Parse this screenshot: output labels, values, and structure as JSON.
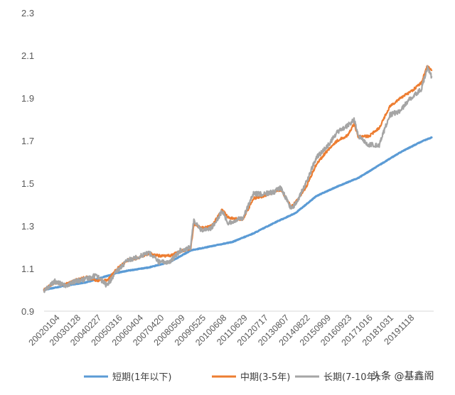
{
  "watermark": "头条 @基鑫阁",
  "chart_data": {
    "type": "line",
    "y_ticks": [
      "0.9",
      "1.1",
      "1.3",
      "1.5",
      "1.7",
      "1.9",
      "2.1",
      "2.3"
    ],
    "ylim": [
      0.9,
      2.3
    ],
    "x_tick_labels": [
      "20020104",
      "20030128",
      "20040227",
      "20050316",
      "20060404",
      "20070420",
      "20080509",
      "20090525",
      "20100608",
      "20110629",
      "20120717",
      "20130807",
      "20140822",
      "20150909",
      "20160923",
      "20171016",
      "20181031",
      "20191118"
    ],
    "x_start_year": 2002,
    "x_end_year": 2020.6,
    "grid": false,
    "legend_position": "bottom",
    "series": [
      {
        "name": "短期(1年以下)",
        "color": "#5B9BD5",
        "points": [
          [
            2002.0,
            1.0
          ],
          [
            2003.0,
            1.02
          ],
          [
            2004.0,
            1.035
          ],
          [
            2005.0,
            1.065
          ],
          [
            2005.5,
            1.08
          ],
          [
            2006.0,
            1.09
          ],
          [
            2007.0,
            1.105
          ],
          [
            2008.0,
            1.13
          ],
          [
            2009.0,
            1.185
          ],
          [
            2010.0,
            1.205
          ],
          [
            2011.0,
            1.225
          ],
          [
            2012.0,
            1.265
          ],
          [
            2013.0,
            1.315
          ],
          [
            2014.0,
            1.36
          ],
          [
            2015.0,
            1.44
          ],
          [
            2016.0,
            1.485
          ],
          [
            2017.0,
            1.525
          ],
          [
            2018.0,
            1.585
          ],
          [
            2019.0,
            1.645
          ],
          [
            2020.0,
            1.695
          ],
          [
            2020.5,
            1.715
          ]
        ]
      },
      {
        "name": "中期(3-5年)",
        "color": "#ED7D31",
        "points": [
          [
            2002.0,
            1.0
          ],
          [
            2002.5,
            1.035
          ],
          [
            2003.0,
            1.025
          ],
          [
            2003.5,
            1.045
          ],
          [
            2004.0,
            1.06
          ],
          [
            2004.5,
            1.045
          ],
          [
            2005.0,
            1.045
          ],
          [
            2005.5,
            1.1
          ],
          [
            2006.0,
            1.14
          ],
          [
            2006.5,
            1.15
          ],
          [
            2007.0,
            1.17
          ],
          [
            2007.5,
            1.16
          ],
          [
            2008.0,
            1.16
          ],
          [
            2008.5,
            1.18
          ],
          [
            2009.0,
            1.195
          ],
          [
            2009.15,
            1.31
          ],
          [
            2009.5,
            1.29
          ],
          [
            2010.0,
            1.3
          ],
          [
            2010.5,
            1.375
          ],
          [
            2010.8,
            1.34
          ],
          [
            2011.0,
            1.335
          ],
          [
            2011.5,
            1.33
          ],
          [
            2012.0,
            1.43
          ],
          [
            2012.5,
            1.44
          ],
          [
            2013.0,
            1.46
          ],
          [
            2013.3,
            1.47
          ],
          [
            2013.8,
            1.39
          ],
          [
            2014.0,
            1.41
          ],
          [
            2014.5,
            1.48
          ],
          [
            2015.0,
            1.59
          ],
          [
            2015.5,
            1.65
          ],
          [
            2016.0,
            1.7
          ],
          [
            2016.5,
            1.725
          ],
          [
            2016.8,
            1.78
          ],
          [
            2017.0,
            1.72
          ],
          [
            2017.5,
            1.72
          ],
          [
            2018.0,
            1.76
          ],
          [
            2018.5,
            1.86
          ],
          [
            2019.0,
            1.9
          ],
          [
            2019.5,
            1.93
          ],
          [
            2020.0,
            1.97
          ],
          [
            2020.3,
            2.05
          ],
          [
            2020.5,
            2.03
          ]
        ]
      },
      {
        "name": "长期(7-10年)",
        "color": "#A5A5A5",
        "points": [
          [
            2002.0,
            0.995
          ],
          [
            2002.5,
            1.04
          ],
          [
            2003.0,
            1.02
          ],
          [
            2003.5,
            1.04
          ],
          [
            2004.0,
            1.05
          ],
          [
            2004.5,
            1.07
          ],
          [
            2005.0,
            1.02
          ],
          [
            2005.5,
            1.09
          ],
          [
            2006.0,
            1.14
          ],
          [
            2006.5,
            1.155
          ],
          [
            2007.0,
            1.175
          ],
          [
            2007.5,
            1.13
          ],
          [
            2008.0,
            1.13
          ],
          [
            2008.5,
            1.185
          ],
          [
            2009.0,
            1.2
          ],
          [
            2009.15,
            1.33
          ],
          [
            2009.5,
            1.28
          ],
          [
            2010.0,
            1.29
          ],
          [
            2010.5,
            1.37
          ],
          [
            2010.8,
            1.31
          ],
          [
            2011.0,
            1.32
          ],
          [
            2011.5,
            1.34
          ],
          [
            2012.0,
            1.45
          ],
          [
            2012.5,
            1.45
          ],
          [
            2013.0,
            1.46
          ],
          [
            2013.3,
            1.48
          ],
          [
            2013.8,
            1.38
          ],
          [
            2014.0,
            1.4
          ],
          [
            2014.5,
            1.5
          ],
          [
            2015.0,
            1.62
          ],
          [
            2015.5,
            1.67
          ],
          [
            2016.0,
            1.74
          ],
          [
            2016.5,
            1.77
          ],
          [
            2016.8,
            1.8
          ],
          [
            2017.0,
            1.72
          ],
          [
            2017.5,
            1.68
          ],
          [
            2018.0,
            1.68
          ],
          [
            2018.5,
            1.82
          ],
          [
            2019.0,
            1.84
          ],
          [
            2019.5,
            1.9
          ],
          [
            2020.0,
            1.94
          ],
          [
            2020.3,
            2.04
          ],
          [
            2020.5,
            2.0
          ]
        ]
      }
    ]
  }
}
